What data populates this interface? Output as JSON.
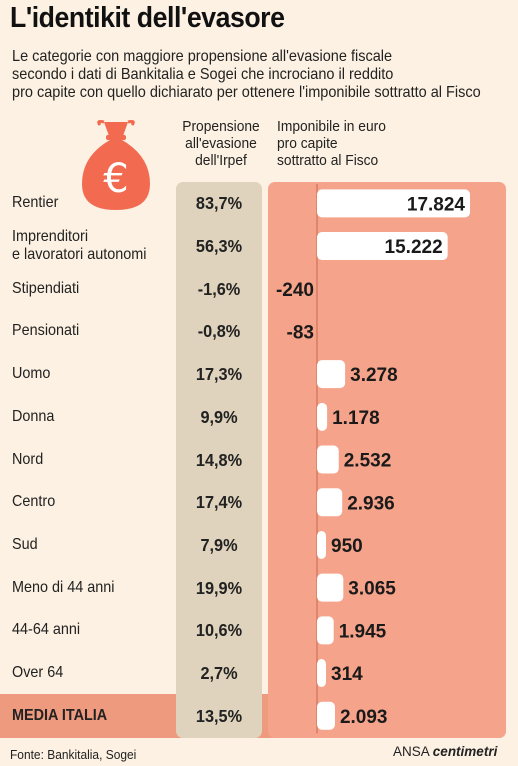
{
  "header": {
    "title": "L'identikit dell'evasore",
    "subtitle_lines": [
      "Le categorie con maggiore propensione all'evasione fiscale",
      "secondo i dati di Bankitalia e Sogei che incrociano il reddito",
      "pro capite con quello dichiarato per ottenere l'imponibile sottratto al Fisco"
    ]
  },
  "columns": {
    "propensity_header": [
      "Propensione",
      "all'evasione",
      "dell'Irpef"
    ],
    "taxable_header": [
      "Imponibile in euro",
      "pro capite",
      "sottratto al Fisco"
    ]
  },
  "icon": {
    "name": "money-bag-euro-icon",
    "symbol": "€",
    "color": "#f26b50"
  },
  "colors": {
    "bar_fill": "#ffffff",
    "bar_panel": "#f5a38a",
    "pct_panel": "#dfd3bd",
    "average_band": "#ee9a7f",
    "background": "#fcf1e2"
  },
  "chart_data": {
    "type": "bar",
    "orientation": "horizontal",
    "title": "L'identikit dell'evasore",
    "categories": [
      "Rentier",
      "Imprenditori\ne lavoratori autonomi",
      "Stipendiati",
      "Pensionati",
      "Uomo",
      "Donna",
      "Nord",
      "Centro",
      "Sud",
      "Meno di 44 anni",
      "44-64 anni",
      "Over 64",
      "MEDIA ITALIA"
    ],
    "series": [
      {
        "name": "Propensione all'evasione dell'Irpef",
        "values": [
          83.7,
          56.3,
          -1.6,
          -0.8,
          17.3,
          9.9,
          14.8,
          17.4,
          7.9,
          19.9,
          10.6,
          2.7,
          13.5
        ],
        "labels": [
          "83,7%",
          "56,3%",
          "-1,6%",
          "-0,8%",
          "17,3%",
          "9,9%",
          "14,8%",
          "17,4%",
          "7,9%",
          "19,9%",
          "10,6%",
          "2,7%",
          "13,5%"
        ]
      },
      {
        "name": "Imponibile in euro pro capite sottratto al Fisco",
        "values": [
          17824,
          15222,
          -240,
          -83,
          3278,
          1178,
          2532,
          2936,
          950,
          3065,
          1945,
          314,
          2093
        ],
        "labels": [
          "17.824",
          "15.222",
          "-240",
          "-83",
          "3.278",
          "1.178",
          "2.532",
          "2.936",
          "950",
          "3.065",
          "1.945",
          "314",
          "2.093"
        ]
      }
    ],
    "highlight_category": "MEDIA ITALIA"
  },
  "footer": {
    "source": "Fonte: Bankitalia, Sogei",
    "brand_1": "ANSA",
    "brand_2": "centimetri"
  }
}
